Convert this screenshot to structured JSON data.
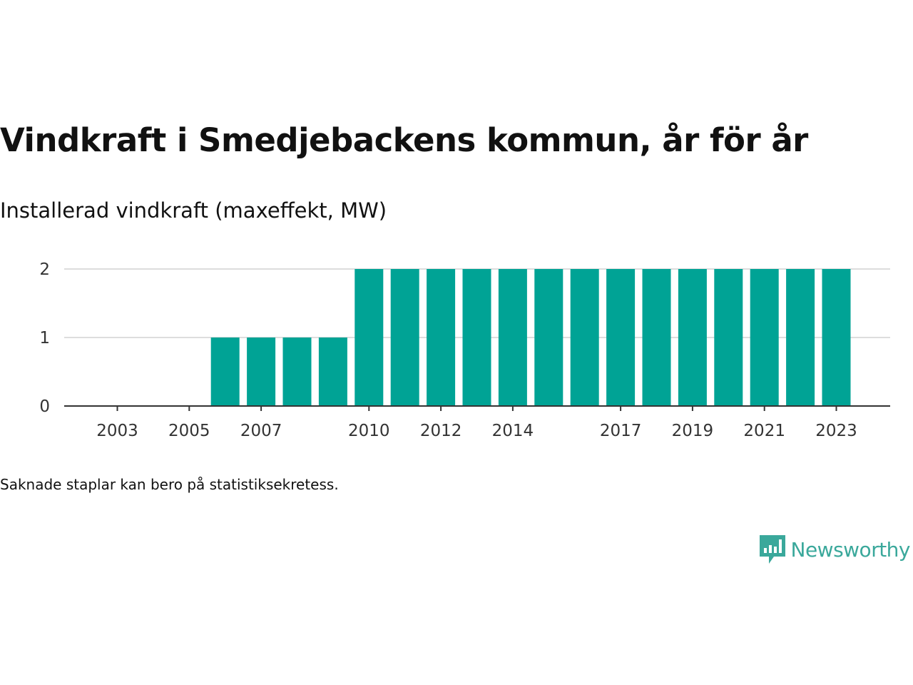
{
  "title": "Vindkraft i Smedjebackens kommun, år för år",
  "subtitle": "Installerad vindkraft (maxeffekt, MW)",
  "footnote": "Saknade staplar kan bero på statistiksekretess.",
  "brand": {
    "name": "Newsworthy",
    "icon": "newsworthy-logo-icon",
    "color": "#3aa89b"
  },
  "chart_data": {
    "type": "bar",
    "categories": [
      "2003",
      "2004",
      "2005",
      "2006",
      "2007",
      "2008",
      "2009",
      "2010",
      "2011",
      "2012",
      "2013",
      "2014",
      "2015",
      "2016",
      "2017",
      "2018",
      "2019",
      "2020",
      "2021",
      "2022",
      "2023"
    ],
    "values": [
      0,
      0,
      0,
      1,
      1,
      1,
      1,
      2,
      2,
      2,
      2,
      2,
      2,
      2,
      2,
      2,
      2,
      2,
      2,
      2,
      2
    ],
    "x_tick_labels": [
      "2003",
      "2005",
      "2007",
      "2010",
      "2012",
      "2014",
      "2017",
      "2019",
      "2021",
      "2023"
    ],
    "y_ticks": [
      0,
      1,
      2
    ],
    "ylim": [
      0,
      2
    ],
    "grid": true,
    "bar_color": "#00a395",
    "xlabel": "",
    "ylabel": ""
  }
}
